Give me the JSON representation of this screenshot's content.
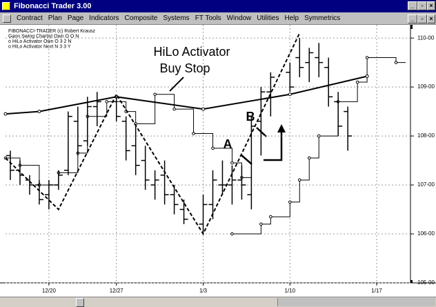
{
  "window": {
    "title": "Fibonacci Trader 3.00",
    "menu": [
      "Contract",
      "Plan",
      "Page",
      "Indicators",
      "Composite",
      "Systems",
      "FT Tools",
      "Window",
      "Utilities",
      "Help",
      "Symmetrics"
    ]
  },
  "chart": {
    "legend": [
      "FIBONACCI-TRADER (c) Robert Krausz",
      "Gann Swing Chartist Own O O N",
      "o HiLo Activator Own O 3 2 N",
      "o HiLo Activator Next N 3 3 Y"
    ],
    "annotations": {
      "hilo": [
        "HiLo Activator",
        "Buy Stop"
      ],
      "a": "A",
      "b": "B"
    },
    "xlim": [
      -0.5,
      41.5
    ],
    "ylim": [
      105,
      110.27
    ],
    "yticks": [
      {
        "value": 110,
        "label": "110-00"
      },
      {
        "value": 109,
        "label": "109-00"
      },
      {
        "value": 108,
        "label": "108-00"
      },
      {
        "value": 107,
        "label": "107-00"
      },
      {
        "value": 106,
        "label": "106-00"
      },
      {
        "value": 105,
        "label": "105-00"
      }
    ],
    "xticks": [
      {
        "value": 4,
        "label": "12/20"
      },
      {
        "value": 11,
        "label": "12/27"
      },
      {
        "value": 20,
        "label": "1/3"
      },
      {
        "value": 29,
        "label": "1/10"
      },
      {
        "value": 38,
        "label": "1/17"
      }
    ],
    "bars": {
      "x": [
        0,
        1,
        2,
        3,
        4,
        5,
        6,
        7,
        8,
        9,
        11,
        12,
        13,
        14,
        15,
        16,
        17,
        18,
        20,
        21,
        22,
        23,
        24,
        25,
        26,
        27,
        29,
        30,
        31,
        32,
        33,
        34,
        35
      ],
      "open": [
        107.6,
        107.3,
        107.1,
        107.0,
        106.8,
        107.0,
        107.3,
        108.3,
        107.9,
        108.6,
        108.7,
        108.3,
        107.8,
        107.5,
        107.0,
        107.2,
        106.8,
        106.5,
        106.2,
        106.6,
        107.0,
        107.0,
        107.1,
        106.8,
        108.3,
        108.9,
        109.3,
        109.6,
        109.5,
        109.6,
        109.4,
        108.7,
        108.5
      ],
      "high": [
        107.7,
        107.5,
        107.2,
        107.1,
        107.1,
        107.3,
        108.5,
        108.6,
        108.8,
        108.9,
        108.8,
        108.4,
        108.2,
        107.8,
        107.3,
        107.5,
        107.0,
        106.7,
        106.8,
        107.3,
        107.5,
        107.4,
        107.4,
        108.4,
        109.0,
        109.3,
        109.5,
        110.0,
        109.8,
        109.9,
        109.6,
        108.9,
        108.6
      ],
      "low": [
        107.1,
        107.0,
        106.8,
        106.6,
        106.5,
        106.9,
        107.2,
        107.6,
        107.8,
        108.2,
        108.3,
        107.5,
        107.2,
        106.9,
        106.7,
        106.6,
        106.4,
        106.2,
        106.0,
        106.3,
        106.8,
        106.6,
        106.7,
        106.5,
        107.6,
        108.4,
        108.9,
        109.2,
        109.1,
        109.2,
        108.6,
        108.0,
        107.7
      ],
      "close": [
        107.3,
        107.2,
        107.0,
        106.7,
        107.0,
        107.2,
        108.4,
        107.8,
        108.6,
        108.7,
        108.4,
        107.7,
        107.4,
        107.1,
        107.1,
        106.8,
        106.6,
        106.3,
        106.6,
        107.1,
        107.0,
        107.1,
        107.0,
        108.2,
        108.9,
        109.2,
        109.0,
        109.4,
        109.7,
        109.5,
        108.8,
        108.2,
        108.0
      ]
    },
    "hilo_own": {
      "x": [
        -0.5,
        1,
        3,
        5,
        7,
        8,
        10,
        12,
        13,
        15,
        17,
        19,
        21,
        23,
        24
      ],
      "y": [
        107.55,
        107.4,
        107.0,
        107.25,
        107.65,
        108.4,
        108.7,
        108.5,
        108.25,
        108.85,
        108.55,
        108.05,
        107.75,
        107.45,
        107.15
      ]
    },
    "hilo_next": {
      "x": [
        23,
        26,
        27,
        29,
        30,
        31,
        32,
        34,
        36,
        37,
        40
      ],
      "y": [
        106.0,
        106.2,
        106.35,
        106.65,
        107.1,
        107.55,
        108.0,
        108.7,
        109.1,
        109.6,
        109.5
      ]
    },
    "trend": {
      "x": [
        -0.5,
        3,
        11,
        20,
        29,
        37
      ],
      "y": [
        108.45,
        108.5,
        108.8,
        108.55,
        108.85,
        109.22
      ]
    },
    "swing": {
      "x": [
        -0.5,
        5,
        11,
        20,
        30
      ],
      "y": [
        107.55,
        106.5,
        108.85,
        106.0,
        110.1
      ]
    }
  }
}
